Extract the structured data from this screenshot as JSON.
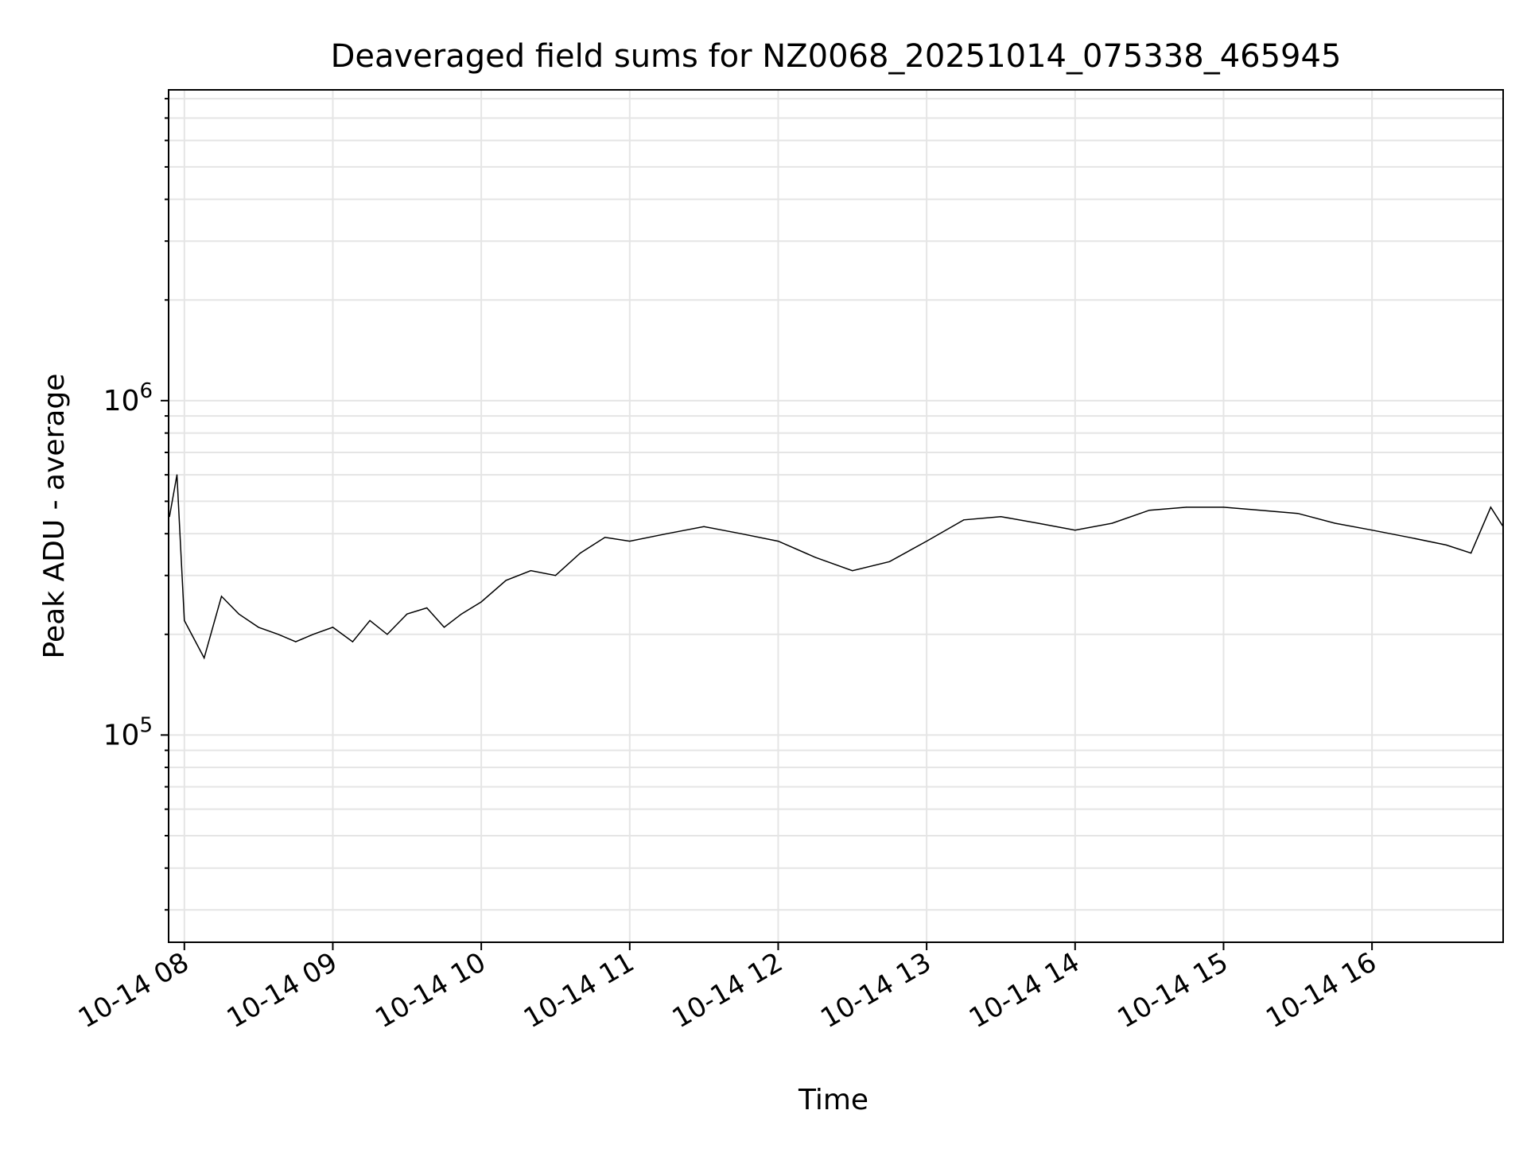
{
  "chart_data": {
    "type": "line",
    "title": "Deaveraged field sums for NZ0068_20251014_075338_465945",
    "xlabel": "Time",
    "ylabel": "Peak ADU - average",
    "y_scale": "log",
    "ylim": [
      24000,
      8500000
    ],
    "xlim": [
      "2025-10-14 07:53:38",
      "2025-10-14 16:53:00"
    ],
    "x_ticks": [
      "10-14 08",
      "10-14 09",
      "10-14 10",
      "10-14 11",
      "10-14 12",
      "10-14 13",
      "10-14 14",
      "10-14 15",
      "10-14 16"
    ],
    "x_tick_times": [
      "2025-10-14 08:00",
      "2025-10-14 09:00",
      "2025-10-14 10:00",
      "2025-10-14 11:00",
      "2025-10-14 12:00",
      "2025-10-14 13:00",
      "2025-10-14 14:00",
      "2025-10-14 15:00",
      "2025-10-14 16:00"
    ],
    "y_ticks": [
      100000,
      1000000
    ],
    "y_tick_labels": [
      {
        "base": "10",
        "exp": "5"
      },
      {
        "base": "10",
        "exp": "6"
      }
    ],
    "grid": true,
    "legend": "none",
    "line_color": "#000000",
    "series": [
      {
        "x": [
          "2025-10-14 07:54",
          "2025-10-14 07:57",
          "2025-10-14 08:00",
          "2025-10-14 08:08",
          "2025-10-14 08:15",
          "2025-10-14 08:22",
          "2025-10-14 08:30",
          "2025-10-14 08:38",
          "2025-10-14 08:45",
          "2025-10-14 08:52",
          "2025-10-14 09:00",
          "2025-10-14 09:08",
          "2025-10-14 09:15",
          "2025-10-14 09:22",
          "2025-10-14 09:30",
          "2025-10-14 09:38",
          "2025-10-14 09:45",
          "2025-10-14 09:52",
          "2025-10-14 10:00",
          "2025-10-14 10:10",
          "2025-10-14 10:20",
          "2025-10-14 10:30",
          "2025-10-14 10:40",
          "2025-10-14 10:50",
          "2025-10-14 11:00",
          "2025-10-14 11:15",
          "2025-10-14 11:30",
          "2025-10-14 11:45",
          "2025-10-14 12:00",
          "2025-10-14 12:15",
          "2025-10-14 12:30",
          "2025-10-14 12:45",
          "2025-10-14 13:00",
          "2025-10-14 13:15",
          "2025-10-14 13:30",
          "2025-10-14 13:45",
          "2025-10-14 14:00",
          "2025-10-14 14:15",
          "2025-10-14 14:30",
          "2025-10-14 14:45",
          "2025-10-14 15:00",
          "2025-10-14 15:15",
          "2025-10-14 15:30",
          "2025-10-14 15:45",
          "2025-10-14 16:00",
          "2025-10-14 16:15",
          "2025-10-14 16:30",
          "2025-10-14 16:40",
          "2025-10-14 16:48",
          "2025-10-14 16:53"
        ],
        "values": [
          450000,
          600000,
          220000,
          170000,
          260000,
          230000,
          210000,
          200000,
          190000,
          200000,
          210000,
          190000,
          220000,
          200000,
          230000,
          240000,
          210000,
          230000,
          250000,
          290000,
          310000,
          300000,
          350000,
          390000,
          380000,
          400000,
          420000,
          400000,
          380000,
          340000,
          310000,
          330000,
          380000,
          440000,
          450000,
          430000,
          410000,
          430000,
          470000,
          480000,
          480000,
          470000,
          460000,
          430000,
          410000,
          390000,
          370000,
          350000,
          480000,
          420000
        ]
      }
    ]
  }
}
